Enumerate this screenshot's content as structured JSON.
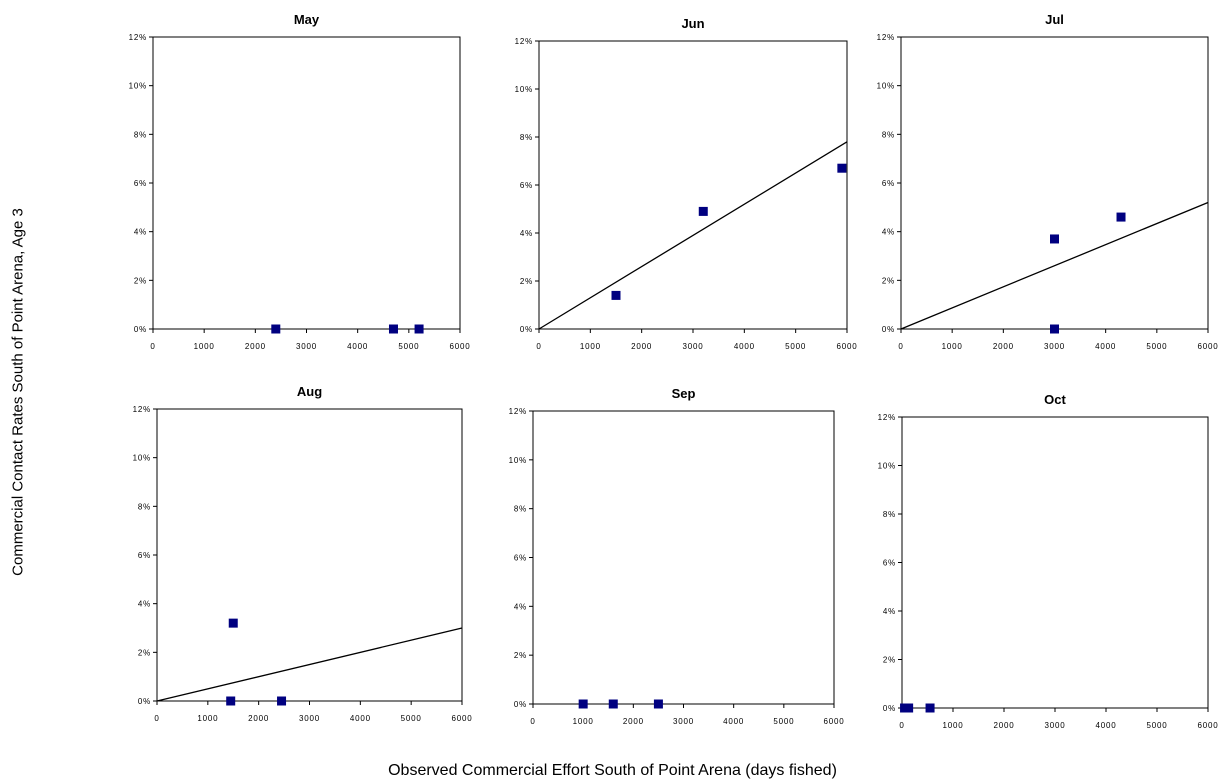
{
  "ylabel": "Commercial Contact Rates South of Point Arena, Age 3",
  "xlabel": "Observed Commercial Effort South of Point Arena (days fished)",
  "colors": {
    "marker": "#000080",
    "line": "#000000",
    "axis": "#000000"
  },
  "chart_data": [
    {
      "type": "scatter",
      "title": "May",
      "xlim": [
        0,
        6000
      ],
      "ylim": [
        0,
        12
      ],
      "xticks": [
        "0",
        "1000",
        "2000",
        "3000",
        "4000",
        "5000",
        "6000"
      ],
      "yticks": [
        "0%",
        "2%",
        "4%",
        "6%",
        "8%",
        "10%",
        "12%"
      ],
      "points": [
        [
          2400,
          0
        ],
        [
          4700,
          0
        ],
        [
          5200,
          0
        ]
      ],
      "trendline": null
    },
    {
      "type": "scatter",
      "title": "Jun",
      "xlim": [
        0,
        6000
      ],
      "ylim": [
        0,
        12
      ],
      "xticks": [
        "0",
        "1000",
        "2000",
        "3000",
        "4000",
        "5000",
        "6000"
      ],
      "yticks": [
        "0%",
        "2%",
        "4%",
        "6%",
        "8%",
        "10%",
        "12%"
      ],
      "points": [
        [
          1500,
          1.4
        ],
        [
          3200,
          4.9
        ],
        [
          5900,
          6.7
        ]
      ],
      "trendline": {
        "x": [
          0,
          6000
        ],
        "y": [
          0,
          7.8
        ]
      }
    },
    {
      "type": "scatter",
      "title": "Jul",
      "xlim": [
        0,
        6000
      ],
      "ylim": [
        0,
        12
      ],
      "xticks": [
        "0",
        "1000",
        "2000",
        "3000",
        "4000",
        "5000",
        "6000"
      ],
      "yticks": [
        "0%",
        "2%",
        "4%",
        "6%",
        "8%",
        "10%",
        "12%"
      ],
      "points": [
        [
          3000,
          3.7
        ],
        [
          3000,
          0
        ],
        [
          4300,
          4.6
        ]
      ],
      "trendline": {
        "x": [
          0,
          6000
        ],
        "y": [
          0,
          5.2
        ]
      }
    },
    {
      "type": "scatter",
      "title": "Aug",
      "xlim": [
        0,
        6000
      ],
      "ylim": [
        0,
        12
      ],
      "xticks": [
        "0",
        "1000",
        "2000",
        "3000",
        "4000",
        "5000",
        "6000"
      ],
      "yticks": [
        "0%",
        "2%",
        "4%",
        "6%",
        "8%",
        "10%",
        "12%"
      ],
      "points": [
        [
          1500,
          3.2
        ],
        [
          1450,
          0
        ],
        [
          2450,
          0
        ]
      ],
      "trendline": {
        "x": [
          0,
          6000
        ],
        "y": [
          0,
          3.0
        ]
      }
    },
    {
      "type": "scatter",
      "title": "Sep",
      "xlim": [
        0,
        6000
      ],
      "ylim": [
        0,
        12
      ],
      "xticks": [
        "0",
        "1000",
        "2000",
        "3000",
        "4000",
        "5000",
        "6000"
      ],
      "yticks": [
        "0%",
        "2%",
        "4%",
        "6%",
        "8%",
        "10%",
        "12%"
      ],
      "points": [
        [
          1000,
          0
        ],
        [
          1600,
          0
        ],
        [
          2500,
          0
        ]
      ],
      "trendline": null
    },
    {
      "type": "scatter",
      "title": "Oct",
      "xlim": [
        0,
        6000
      ],
      "ylim": [
        0,
        12
      ],
      "xticks": [
        "0",
        "1000",
        "2000",
        "3000",
        "4000",
        "5000",
        "6000"
      ],
      "yticks": [
        "0%",
        "2%",
        "4%",
        "6%",
        "8%",
        "10%",
        "12%"
      ],
      "points": [
        [
          50,
          0
        ],
        [
          130,
          0
        ],
        [
          550,
          0
        ]
      ],
      "trendline": null
    }
  ]
}
